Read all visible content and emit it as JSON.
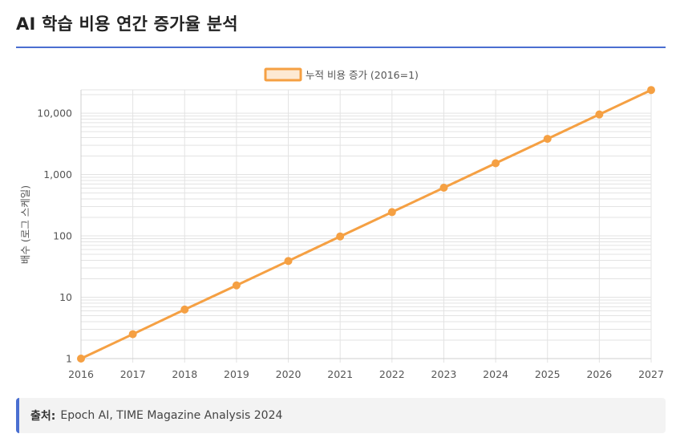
{
  "page": {
    "title": "AI 학습 비용 연간 증가율 분석"
  },
  "source": {
    "label": "출처:",
    "text": "Epoch AI, TIME Magazine Analysis 2024"
  },
  "colors": {
    "accent": "#4a6fd1",
    "series_line": "#f5a043",
    "series_fill": "#fde9d3",
    "grid": "#e3e3e3",
    "axis_text": "#555555"
  },
  "chart_data": {
    "type": "line",
    "title": "",
    "xlabel": "",
    "ylabel": "배수 (로그 스케일)",
    "y_scale": "log",
    "ylim": [
      1,
      24000
    ],
    "y_ticks": [
      1,
      10,
      100,
      1000,
      10000
    ],
    "y_tick_labels": [
      "1",
      "10",
      "100",
      "1,000",
      "10,000"
    ],
    "grid": true,
    "legend_position": "top-center",
    "categories": [
      "2016",
      "2017",
      "2018",
      "2019",
      "2020",
      "2021",
      "2022",
      "2023",
      "2024",
      "2025",
      "2026",
      "2027"
    ],
    "series": [
      {
        "name": "누적 비용 증가 (2016=1)",
        "values": [
          1,
          2.5,
          6.3,
          15.6,
          39,
          98,
          244,
          610,
          1526,
          3815,
          9537,
          23842
        ]
      }
    ]
  }
}
